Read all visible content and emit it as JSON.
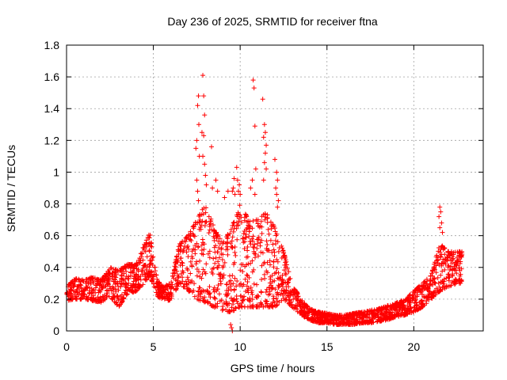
{
  "chart_data": {
    "type": "scatter",
    "title": "Day 236 of 2025, SRMTID for receiver ftna",
    "xlabel": "GPS time / hours",
    "ylabel": "SRMTID / TECUs",
    "xlim": [
      0,
      24
    ],
    "ylim": [
      0,
      1.8
    ],
    "xticks": [
      0,
      5,
      10,
      15,
      20
    ],
    "xtick_labels": [
      "0",
      "5",
      "10",
      "15",
      "20"
    ],
    "yticks": [
      0,
      0.2,
      0.4,
      0.6,
      0.8,
      1.0,
      1.2,
      1.4,
      1.6,
      1.8
    ],
    "ytick_labels": [
      "0",
      "0.2",
      "0.4",
      "0.6",
      "0.8",
      "1",
      "1.2",
      "1.4",
      "1.6",
      "1.8"
    ],
    "grid": true,
    "marker": "plus",
    "marker_color": "#ff0000",
    "series_name": "SRMTID",
    "x_range_hours": [
      0,
      22.8
    ],
    "envelope": {
      "x": [
        0,
        0.5,
        1,
        1.5,
        2,
        2.5,
        3,
        3.5,
        4,
        4.5,
        4.8,
        5.2,
        5.5,
        6,
        6.5,
        7,
        7.5,
        8,
        8.5,
        9,
        9.5,
        10,
        10.5,
        11,
        11.5,
        12,
        12.5,
        13,
        13.5,
        14,
        14.5,
        15,
        15.5,
        16,
        16.5,
        17,
        17.5,
        18,
        18.5,
        19,
        19.5,
        20,
        20.5,
        21,
        21.5,
        22,
        22.5,
        22.8
      ],
      "low": [
        0.19,
        0.2,
        0.2,
        0.19,
        0.18,
        0.22,
        0.15,
        0.23,
        0.25,
        0.3,
        0.35,
        0.22,
        0.2,
        0.19,
        0.3,
        0.25,
        0.2,
        0.18,
        0.15,
        0.12,
        0.12,
        0.15,
        0.15,
        0.15,
        0.15,
        0.15,
        0.2,
        0.15,
        0.1,
        0.07,
        0.05,
        0.05,
        0.04,
        0.04,
        0.04,
        0.05,
        0.05,
        0.06,
        0.07,
        0.09,
        0.1,
        0.12,
        0.15,
        0.2,
        0.25,
        0.28,
        0.3,
        0.3
      ],
      "high": [
        0.28,
        0.33,
        0.32,
        0.34,
        0.32,
        0.4,
        0.38,
        0.42,
        0.42,
        0.55,
        0.62,
        0.33,
        0.28,
        0.3,
        0.55,
        0.6,
        0.7,
        0.8,
        0.65,
        0.55,
        0.65,
        0.8,
        0.7,
        0.7,
        0.75,
        0.65,
        0.5,
        0.3,
        0.2,
        0.14,
        0.12,
        0.11,
        0.1,
        0.1,
        0.11,
        0.12,
        0.13,
        0.14,
        0.16,
        0.18,
        0.2,
        0.25,
        0.3,
        0.35,
        0.55,
        0.5,
        0.5,
        0.5
      ]
    },
    "outliers": [
      [
        7.6,
        1.48
      ],
      [
        7.55,
        1.42
      ],
      [
        7.62,
        1.3
      ],
      [
        7.5,
        1.2
      ],
      [
        7.45,
        1.15
      ],
      [
        7.65,
        1.1
      ],
      [
        7.5,
        0.95
      ],
      [
        7.55,
        0.88
      ],
      [
        7.6,
        0.82
      ],
      [
        7.85,
        1.61
      ],
      [
        7.9,
        1.48
      ],
      [
        7.95,
        1.36
      ],
      [
        7.8,
        1.25
      ],
      [
        7.9,
        1.23
      ],
      [
        7.85,
        1.1
      ],
      [
        7.95,
        1.05
      ],
      [
        8.0,
        0.98
      ],
      [
        8.05,
        0.92
      ],
      [
        8.35,
        1.16
      ],
      [
        8.4,
        0.9
      ],
      [
        8.6,
        0.95
      ],
      [
        8.7,
        0.88
      ],
      [
        9.1,
        0.84
      ],
      [
        9.3,
        0.88
      ],
      [
        9.55,
        0.88
      ],
      [
        9.6,
        0.9
      ],
      [
        9.65,
        0.96
      ],
      [
        9.7,
        0.86
      ],
      [
        9.8,
        1.03
      ],
      [
        9.85,
        0.95
      ],
      [
        9.9,
        0.88
      ],
      [
        10.0,
        0.86
      ],
      [
        9.95,
        0.92
      ],
      [
        10.75,
        1.58
      ],
      [
        10.8,
        1.53
      ],
      [
        10.85,
        1.29
      ],
      [
        10.9,
        1.02
      ],
      [
        10.7,
        0.95
      ],
      [
        10.85,
        0.86
      ],
      [
        10.6,
        0.9
      ],
      [
        11.3,
        1.46
      ],
      [
        11.4,
        1.3
      ],
      [
        11.45,
        1.25
      ],
      [
        11.35,
        1.22
      ],
      [
        11.5,
        1.17
      ],
      [
        11.45,
        1.12
      ],
      [
        11.4,
        1.06
      ],
      [
        11.5,
        1.02
      ],
      [
        11.35,
        0.95
      ],
      [
        12.0,
        1.08
      ],
      [
        12.1,
        1.0
      ],
      [
        12.15,
        0.95
      ],
      [
        12.05,
        0.9
      ],
      [
        12.1,
        0.86
      ],
      [
        12.2,
        0.82
      ],
      [
        12.15,
        0.78
      ],
      [
        21.5,
        0.78
      ],
      [
        21.55,
        0.75
      ],
      [
        21.45,
        0.72
      ],
      [
        21.6,
        0.68
      ],
      [
        21.5,
        0.65
      ],
      [
        21.65,
        0.62
      ],
      [
        9.5,
        0.02
      ],
      [
        9.55,
        0.0
      ],
      [
        9.45,
        0.04
      ]
    ]
  }
}
